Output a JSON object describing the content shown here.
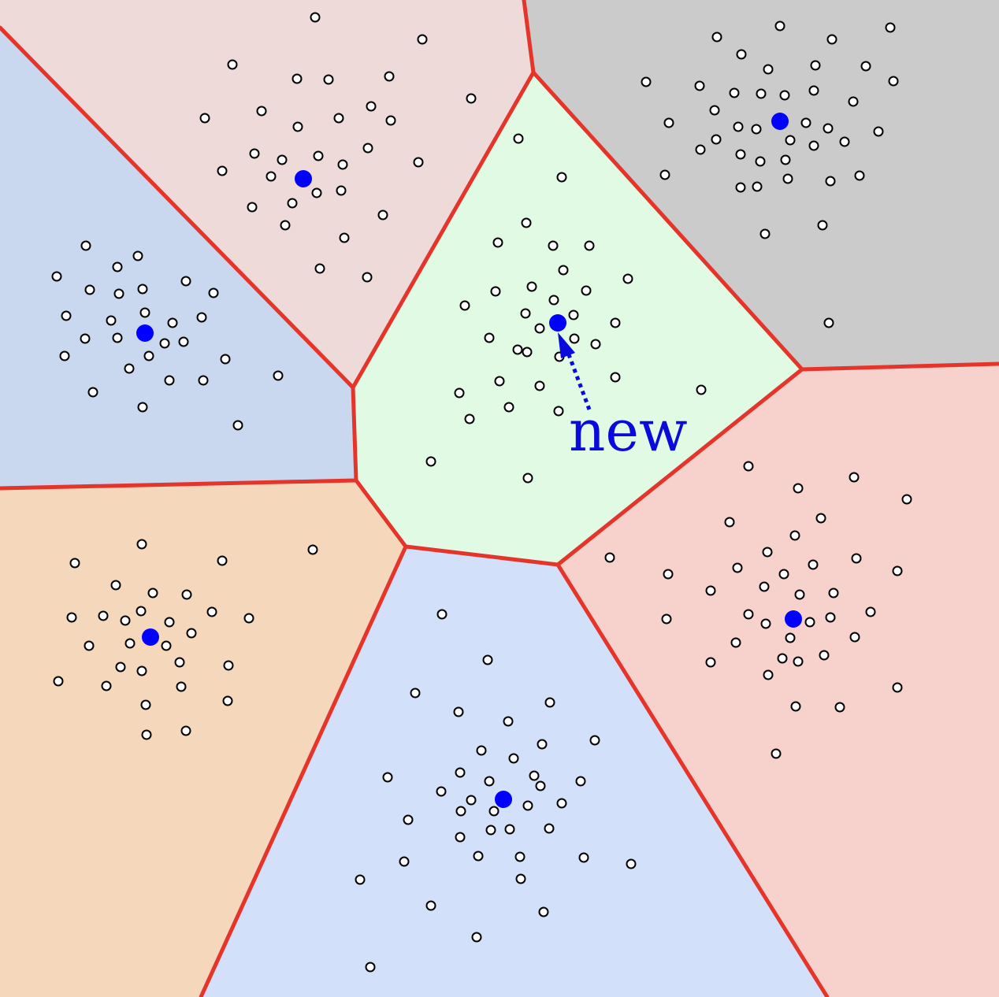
{
  "annotation": {
    "new_label": "new",
    "color": "#0a0adc"
  },
  "colors": {
    "boundary": "#e5352b",
    "centroid": "#0000ff",
    "point_fill": "#ffffff",
    "point_stroke": "#000000",
    "region_top": "#eddad9",
    "region_left": "#c9d8ef",
    "region_topright": "#cbcbcb",
    "region_center": "#e0fae3",
    "region_right": "#f7d1cc",
    "region_bottomleft": "#f5d7bb",
    "region_bottom": "#d3e0f9"
  }
}
